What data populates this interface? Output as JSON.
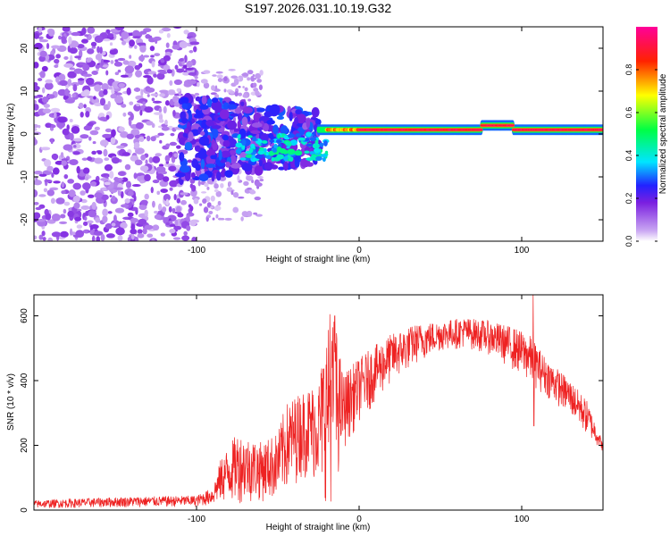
{
  "figure": {
    "title": "S197.2026.031.10.19.G32"
  },
  "chart_data": [
    {
      "type": "heatmap",
      "title": "S197.2026.031.10.19.G32",
      "xlabel": "Height of straight line (km)",
      "ylabel": "Frequency (Hz)",
      "xlim": [
        -200,
        150
      ],
      "ylim": [
        -25,
        25
      ],
      "xticks": [
        -100,
        0,
        100
      ],
      "yticks": [
        -20,
        -10,
        0,
        10,
        20
      ],
      "grid": false,
      "colorbar": {
        "label": "Normalized spectral amplitude",
        "range": [
          0,
          1
        ],
        "ticks": [
          0.0,
          0.2,
          0.4,
          0.6,
          0.8
        ],
        "colormap": [
          "#ffffff",
          "#8a2be2",
          "#0000ff",
          "#00ffff",
          "#00ff00",
          "#ffff00",
          "#ff0000",
          "#ff00aa"
        ]
      },
      "description_regions": [
        {
          "x_range": [
            -200,
            -100
          ],
          "freq_range": [
            -25,
            25
          ],
          "amplitude": [
            0.05,
            0.2
          ]
        },
        {
          "x_range": [
            -100,
            -25
          ],
          "freq_range": [
            -10,
            8
          ],
          "amplitude": [
            0.1,
            0.4
          ]
        },
        {
          "x_range": [
            -25,
            150
          ],
          "freq_center": 1,
          "freq_halfwidth": 1.2,
          "amplitude": [
            0.7,
            1.0
          ]
        }
      ]
    },
    {
      "type": "line",
      "xlabel": "Height of straight line (km)",
      "ylabel": "SNR (10 * v/v)",
      "xlim": [
        -200,
        150
      ],
      "ylim": [
        0,
        665
      ],
      "xticks": [
        -100,
        0,
        100
      ],
      "yticks": [
        0,
        200,
        400,
        600
      ],
      "color": "#ee2222",
      "grid": false,
      "envelope_points": [
        {
          "x": -200,
          "low": 5,
          "high": 30
        },
        {
          "x": -150,
          "low": 8,
          "high": 40
        },
        {
          "x": -100,
          "low": 10,
          "high": 45
        },
        {
          "x": -90,
          "low": 15,
          "high": 70
        },
        {
          "x": -85,
          "low": 20,
          "high": 160
        },
        {
          "x": -75,
          "low": 20,
          "high": 240
        },
        {
          "x": -60,
          "low": 25,
          "high": 210
        },
        {
          "x": -50,
          "low": 30,
          "high": 240
        },
        {
          "x": -45,
          "low": 50,
          "high": 330
        },
        {
          "x": -35,
          "low": 100,
          "high": 370
        },
        {
          "x": -25,
          "low": 80,
          "high": 400
        },
        {
          "x": -20,
          "low": 20,
          "high": 560
        },
        {
          "x": -15,
          "low": 30,
          "high": 600
        },
        {
          "x": -10,
          "low": 180,
          "high": 420
        },
        {
          "x": 0,
          "low": 270,
          "high": 470
        },
        {
          "x": 10,
          "low": 330,
          "high": 510
        },
        {
          "x": 20,
          "low": 390,
          "high": 545
        },
        {
          "x": 35,
          "low": 450,
          "high": 575
        },
        {
          "x": 50,
          "low": 490,
          "high": 585
        },
        {
          "x": 65,
          "low": 500,
          "high": 595
        },
        {
          "x": 80,
          "low": 480,
          "high": 585
        },
        {
          "x": 95,
          "low": 430,
          "high": 565
        },
        {
          "x": 105,
          "low": 390,
          "high": 540
        },
        {
          "x": 115,
          "low": 350,
          "high": 470
        },
        {
          "x": 130,
          "low": 290,
          "high": 400
        },
        {
          "x": 140,
          "low": 230,
          "high": 340
        },
        {
          "x": 150,
          "low": 180,
          "high": 210
        }
      ],
      "spikes": [
        {
          "x": -18,
          "value": 605
        },
        {
          "x": -15,
          "value": 600
        },
        {
          "x": 107,
          "value": 665
        },
        {
          "x": 107.5,
          "value": 260
        }
      ]
    }
  ]
}
